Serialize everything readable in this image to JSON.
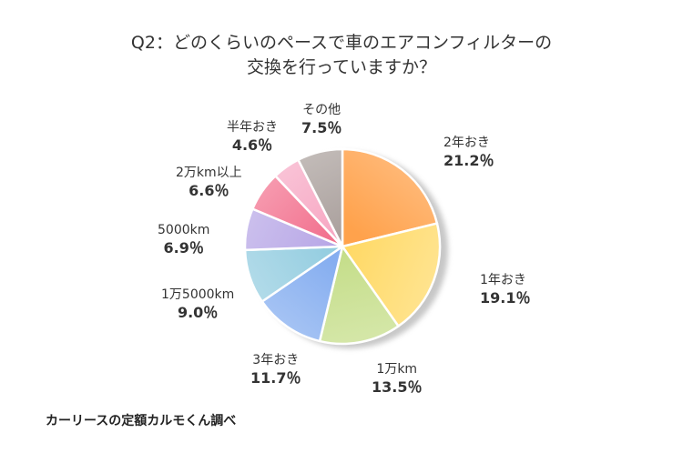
{
  "chart_data": {
    "type": "pie",
    "title_lines": [
      "Q2：どのくらいのペースで車のエアコンフィルターの",
      "交換を行っていますか？"
    ],
    "start_angle_deg": 0,
    "direction": "clockwise",
    "slices": [
      {
        "label": "2年おき",
        "value": 21.2,
        "value_label": "21.2％",
        "color": "#ffa24c"
      },
      {
        "label": "1年おき",
        "value": 19.1,
        "value_label": "19.1％",
        "color": "#ffd966"
      },
      {
        "label": "1万km",
        "value": 13.5,
        "value_label": "13.5％",
        "color": "#c4dd88"
      },
      {
        "label": "3年おき",
        "value": 11.7,
        "value_label": "11.7％",
        "color": "#86aef0"
      },
      {
        "label": "1万5000km",
        "value": 9.0,
        "value_label": "9.0％",
        "color": "#94cde0"
      },
      {
        "label": "5000km",
        "value": 6.9,
        "value_label": "6.9％",
        "color": "#b7a6e6"
      },
      {
        "label": "2万km以上",
        "value": 6.6,
        "value_label": "6.6％",
        "color": "#f2728f"
      },
      {
        "label": "半年おき",
        "value": 4.6,
        "value_label": "4.6％",
        "color": "#f7a9c4"
      },
      {
        "label": "その他",
        "value": 7.5,
        "value_label": "7.5％",
        "color": "#aaa09d"
      }
    ]
  },
  "source_note": "カーリースの定額カルモくん調べ"
}
